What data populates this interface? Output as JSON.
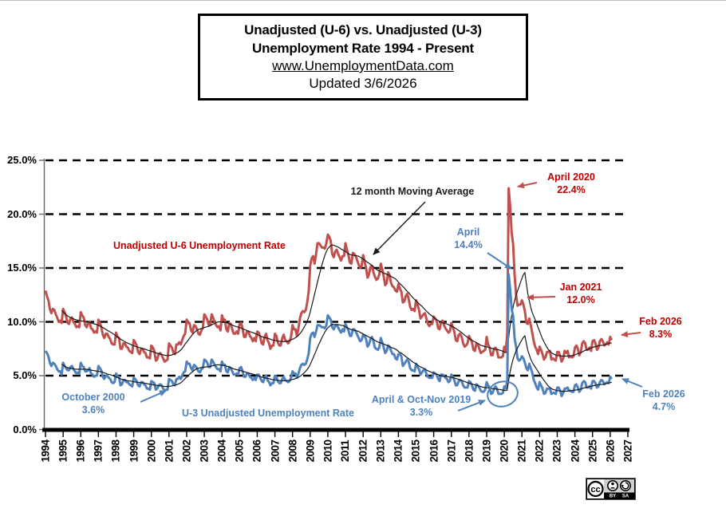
{
  "header": {
    "title_line1": "Unadjusted (U-6) vs. Unadjusted (U-3)",
    "title_line2": "Unemployment Rate 1994 - Present",
    "link": "www.UnemploymentData.com",
    "updated": "Updated 3/6/2026"
  },
  "annotations": {
    "ma_label": "12 month Moving Average",
    "u6_label": "Unadjusted U-6 Unemployment Rate",
    "u3_label": "U-3  Unadjusted Unemployment Rate",
    "april_2020": {
      "line1": "April 2020",
      "line2": "22.4%"
    },
    "april_14": {
      "line1": "April",
      "line2": "14.4%"
    },
    "jan_2021": {
      "line1": "Jan 2021",
      "line2": "12.0%"
    },
    "feb_2026_u6": {
      "line1": "Feb 2026",
      "line2": "8.3%"
    },
    "feb_2026_u3": {
      "line1": "Feb 2026",
      "line2": "4.7%"
    },
    "oct_2000": {
      "line1": "October 2000",
      "line2": "3.6%"
    },
    "apr_oct_nov_2019": {
      "line1": "April & Oct-Nov  2019",
      "line2": "3.3%"
    }
  },
  "cc_badge": {
    "license": "CC BY-SA",
    "by": "BY",
    "sa": "SA",
    "cc": "cc"
  },
  "chart_data": {
    "type": "line",
    "title": "Unadjusted (U-6) vs. Unadjusted (U-3) Unemployment Rate 1994 - Present",
    "x_start": "1994-01",
    "x_end": "2026-02",
    "ylim": [
      0,
      25
    ],
    "y_tick_step": 5,
    "y_ticks": [
      "0.0%",
      "5.0%",
      "10.0%",
      "15.0%",
      "20.0%",
      "25.0%"
    ],
    "x_ticks": [
      "1994",
      "1995",
      "1996",
      "1997",
      "1998",
      "1999",
      "2000",
      "2001",
      "2002",
      "2003",
      "2004",
      "2005",
      "2006",
      "2007",
      "2008",
      "2009",
      "2010",
      "2011",
      "2012",
      "2013",
      "2014",
      "2015",
      "2016",
      "2017",
      "2018",
      "2019",
      "2020",
      "2021",
      "2022",
      "2023",
      "2024",
      "2025",
      "2026",
      "2027"
    ],
    "grid": "dashed horizontal at every 5%",
    "legend_position": "in-plot text labels",
    "moving_average": {
      "name": "12 month Moving Average",
      "window": 12,
      "color": "#1a1a1a"
    },
    "series": [
      {
        "name": "Unadjusted U-6 Unemployment Rate",
        "color": "#C0504D",
        "monthly_values": [
          12.9,
          12.4,
          12.0,
          11.2,
          10.8,
          11.2,
          11.1,
          10.7,
          10.4,
          10.0,
          10.1,
          9.9,
          11.2,
          10.9,
          10.5,
          9.9,
          9.8,
          10.3,
          10.4,
          10.0,
          9.8,
          9.5,
          9.6,
          9.5,
          10.9,
          10.6,
          10.4,
          9.7,
          9.5,
          9.9,
          10.0,
          9.4,
          9.3,
          9.0,
          9.1,
          9.0,
          10.2,
          9.9,
          9.5,
          8.8,
          8.5,
          8.9,
          8.9,
          8.6,
          8.4,
          8.0,
          7.9,
          7.9,
          9.0,
          8.6,
          8.5,
          7.5,
          7.5,
          8.0,
          8.0,
          7.7,
          7.6,
          7.3,
          7.2,
          7.1,
          8.3,
          8.1,
          7.8,
          7.2,
          7.0,
          7.5,
          7.5,
          7.2,
          7.1,
          6.7,
          6.7,
          6.6,
          7.8,
          7.6,
          7.3,
          6.4,
          6.5,
          7.0,
          7.1,
          6.9,
          6.6,
          6.3,
          6.4,
          6.5,
          8.0,
          7.8,
          7.6,
          7.1,
          7.0,
          7.9,
          7.9,
          8.1,
          7.9,
          8.3,
          8.7,
          8.9,
          10.2,
          9.9,
          9.9,
          9.2,
          9.0,
          9.7,
          9.6,
          9.3,
          8.9,
          8.8,
          9.2,
          9.4,
          10.7,
          10.5,
          10.2,
          9.7,
          9.7,
          10.7,
          10.4,
          10.0,
          9.7,
          9.5,
          9.6,
          9.2,
          10.6,
          10.2,
          10.2,
          9.3,
          9.1,
          9.9,
          9.8,
          9.3,
          8.9,
          8.9,
          9.1,
          8.9,
          9.8,
          9.9,
          9.4,
          8.6,
          8.6,
          9.1,
          9.1,
          8.7,
          8.5,
          8.2,
          8.5,
          8.2,
          9.1,
          9.0,
          8.6,
          8.0,
          7.9,
          8.6,
          8.9,
          8.3,
          8.0,
          7.5,
          7.8,
          7.8,
          8.9,
          8.7,
          8.1,
          7.8,
          7.8,
          8.5,
          8.8,
          8.3,
          8.2,
          8.0,
          8.2,
          8.6,
          9.7,
          9.3,
          9.3,
          8.7,
          9.4,
          10.3,
          10.8,
          11.0,
          10.9,
          11.1,
          11.8,
          12.9,
          15.2,
          15.9,
          16.1,
          15.4,
          16.3,
          17.3,
          17.3,
          17.1,
          16.9,
          16.9,
          16.8,
          17.3,
          18.1,
          17.9,
          17.5,
          16.3,
          16.0,
          16.5,
          16.7,
          16.3,
          16.0,
          15.7,
          16.1,
          16.1,
          17.3,
          16.7,
          16.2,
          15.5,
          15.4,
          16.4,
          16.3,
          16.1,
          15.7,
          15.3,
          15.0,
          15.2,
          16.2,
          15.6,
          15.0,
          14.1,
          14.4,
          15.1,
          15.2,
          14.6,
          14.2,
          13.9,
          14.0,
          14.4,
          15.4,
          14.9,
          14.2,
          13.4,
          13.6,
          14.6,
          14.3,
          13.6,
          13.3,
          13.2,
          12.9,
          12.8,
          13.5,
          13.1,
          12.8,
          11.8,
          11.9,
          12.4,
          12.6,
          12.1,
          11.4,
          11.1,
          11.2,
          11.0,
          12.0,
          11.6,
          11.1,
          10.3,
          10.5,
          10.7,
          10.8,
          10.3,
          9.8,
          9.6,
          9.8,
          9.8,
          10.5,
          10.3,
          10.1,
          9.4,
          9.3,
          10.0,
          10.1,
          9.7,
          9.4,
          9.2,
          9.0,
          9.1,
          9.9,
          9.5,
          9.1,
          8.3,
          8.2,
          8.8,
          8.9,
          8.6,
          8.0,
          7.7,
          7.8,
          8.0,
          8.7,
          8.4,
          8.1,
          7.4,
          7.3,
          8.0,
          7.9,
          7.5,
          7.1,
          7.2,
          7.3,
          7.4,
          8.6,
          7.9,
          7.6,
          6.9,
          6.9,
          7.5,
          7.6,
          7.3,
          6.7,
          6.7,
          6.7,
          6.8,
          7.7,
          7.3,
          8.9,
          22.4,
          20.7,
          18.3,
          17.2,
          14.4,
          12.5,
          11.5,
          11.6,
          11.6,
          12.0,
          11.6,
          11.0,
          9.9,
          9.8,
          10.3,
          9.7,
          9.0,
          8.2,
          7.7,
          7.4,
          7.0,
          7.7,
          7.4,
          7.0,
          6.5,
          6.7,
          7.2,
          7.2,
          7.3,
          6.5,
          6.6,
          6.5,
          6.4,
          7.2,
          7.2,
          6.8,
          6.3,
          6.6,
          7.3,
          7.1,
          7.3,
          6.7,
          6.8,
          6.7,
          6.8,
          7.6,
          7.8,
          7.5,
          6.9,
          7.2,
          8.0,
          8.2,
          8.0,
          7.4,
          7.4,
          7.6,
          7.3,
          8.2,
          8.3,
          8.0,
          7.4,
          7.6,
          8.2,
          8.4,
          8.2,
          7.8,
          7.9,
          8.1,
          7.9,
          8.6,
          8.3
        ],
        "labeled_points": [
          {
            "label": "April 2020",
            "value": 22.4
          },
          {
            "label": "Jan 2021",
            "value": 12.0
          },
          {
            "label": "Feb 2026",
            "value": 8.3
          }
        ]
      },
      {
        "name": "U-3 Unadjusted Unemployment Rate",
        "color": "#4F81BD",
        "monthly_values": [
          7.3,
          7.1,
          6.8,
          6.2,
          5.9,
          6.2,
          6.1,
          5.9,
          5.6,
          5.4,
          5.4,
          5.1,
          6.2,
          5.9,
          5.7,
          5.5,
          5.5,
          5.8,
          5.9,
          5.6,
          5.4,
          5.2,
          5.3,
          5.2,
          6.2,
          5.9,
          5.8,
          5.4,
          5.4,
          5.5,
          5.7,
          5.2,
          5.1,
          4.9,
          5.0,
          5.0,
          5.9,
          5.7,
          5.5,
          4.9,
          4.7,
          5.0,
          5.0,
          4.8,
          4.7,
          4.4,
          4.3,
          4.4,
          5.2,
          4.9,
          4.9,
          4.1,
          4.2,
          4.6,
          4.6,
          4.4,
          4.4,
          4.2,
          4.1,
          4.0,
          4.8,
          4.7,
          4.5,
          4.1,
          4.0,
          4.4,
          4.4,
          4.2,
          4.1,
          3.8,
          3.8,
          3.7,
          4.5,
          4.4,
          4.3,
          3.7,
          3.8,
          4.1,
          4.2,
          4.1,
          3.8,
          3.6,
          3.7,
          3.7,
          4.7,
          4.6,
          4.5,
          4.2,
          4.1,
          4.7,
          4.7,
          4.9,
          4.7,
          5.0,
          5.3,
          5.4,
          6.3,
          6.1,
          6.1,
          5.7,
          5.5,
          6.0,
          5.9,
          5.7,
          5.4,
          5.3,
          5.6,
          5.7,
          6.5,
          6.4,
          6.2,
          5.8,
          5.8,
          6.5,
          6.3,
          6.0,
          5.8,
          5.6,
          5.6,
          5.4,
          6.3,
          6.0,
          6.0,
          5.4,
          5.3,
          5.8,
          5.7,
          5.4,
          5.1,
          5.1,
          5.2,
          5.1,
          5.7,
          5.8,
          5.4,
          4.9,
          4.9,
          5.2,
          5.2,
          4.9,
          4.8,
          4.6,
          4.8,
          4.6,
          5.1,
          5.1,
          4.8,
          4.5,
          4.4,
          4.8,
          5.0,
          4.6,
          4.4,
          4.1,
          4.3,
          4.3,
          5.0,
          4.9,
          4.5,
          4.3,
          4.3,
          4.7,
          4.9,
          4.6,
          4.5,
          4.4,
          4.5,
          4.8,
          5.4,
          5.2,
          5.2,
          4.8,
          5.2,
          5.7,
          6.0,
          6.1,
          6.0,
          6.1,
          6.5,
          7.1,
          8.5,
          8.9,
          9.0,
          8.6,
          9.1,
          9.7,
          9.7,
          9.6,
          9.5,
          9.5,
          9.4,
          9.7,
          10.6,
          10.4,
          10.2,
          9.5,
          9.3,
          9.6,
          9.7,
          9.5,
          9.2,
          9.0,
          9.3,
          9.1,
          9.8,
          9.5,
          9.2,
          8.7,
          8.7,
          9.3,
          9.3,
          9.1,
          8.8,
          8.5,
          8.2,
          8.3,
          8.8,
          8.7,
          8.4,
          7.7,
          7.9,
          8.4,
          8.6,
          8.2,
          7.6,
          7.5,
          7.4,
          7.6,
          8.5,
          8.1,
          7.6,
          7.1,
          7.3,
          7.8,
          7.7,
          7.3,
          7.0,
          7.0,
          6.6,
          6.5,
          7.0,
          7.0,
          6.8,
          5.9,
          6.1,
          6.3,
          6.5,
          6.3,
          5.7,
          5.5,
          5.5,
          5.4,
          6.1,
          5.8,
          5.6,
          5.1,
          5.3,
          5.5,
          5.6,
          5.2,
          4.9,
          4.8,
          4.8,
          4.8,
          5.3,
          5.2,
          5.1,
          4.7,
          4.5,
          5.1,
          5.1,
          5.0,
          4.8,
          4.7,
          4.4,
          4.5,
          5.1,
          4.9,
          4.6,
          4.1,
          4.1,
          4.5,
          4.6,
          4.5,
          4.1,
          3.9,
          3.9,
          3.9,
          4.5,
          4.4,
          4.1,
          3.7,
          3.6,
          4.2,
          4.1,
          3.9,
          3.6,
          3.5,
          3.5,
          3.7,
          4.4,
          4.1,
          3.9,
          3.3,
          3.4,
          3.8,
          4.0,
          3.8,
          3.3,
          3.3,
          3.3,
          3.4,
          4.0,
          3.8,
          4.5,
          14.4,
          13.0,
          11.2,
          10.5,
          8.5,
          7.7,
          6.6,
          6.4,
          6.5,
          6.8,
          6.6,
          6.2,
          5.7,
          5.5,
          6.1,
          5.7,
          5.3,
          4.6,
          4.3,
          3.9,
          3.7,
          4.4,
          4.1,
          3.8,
          3.3,
          3.4,
          3.8,
          3.8,
          3.8,
          3.3,
          3.4,
          3.4,
          3.3,
          3.9,
          3.9,
          3.6,
          3.1,
          3.4,
          3.8,
          3.8,
          3.9,
          3.6,
          3.6,
          3.5,
          3.5,
          4.1,
          4.2,
          3.9,
          3.5,
          3.7,
          4.3,
          4.5,
          4.4,
          3.9,
          3.9,
          4.0,
          3.8,
          4.5,
          4.5,
          4.3,
          3.9,
          4.0,
          4.4,
          4.6,
          4.5,
          4.2,
          4.3,
          4.4,
          4.3,
          4.9,
          4.7
        ],
        "labeled_points": [
          {
            "label": "October 2000",
            "value": 3.6
          },
          {
            "label": "April & Oct-Nov 2019",
            "value": 3.3
          },
          {
            "label": "April 2020",
            "value": 14.4
          },
          {
            "label": "Feb 2026",
            "value": 4.7
          }
        ]
      }
    ]
  }
}
